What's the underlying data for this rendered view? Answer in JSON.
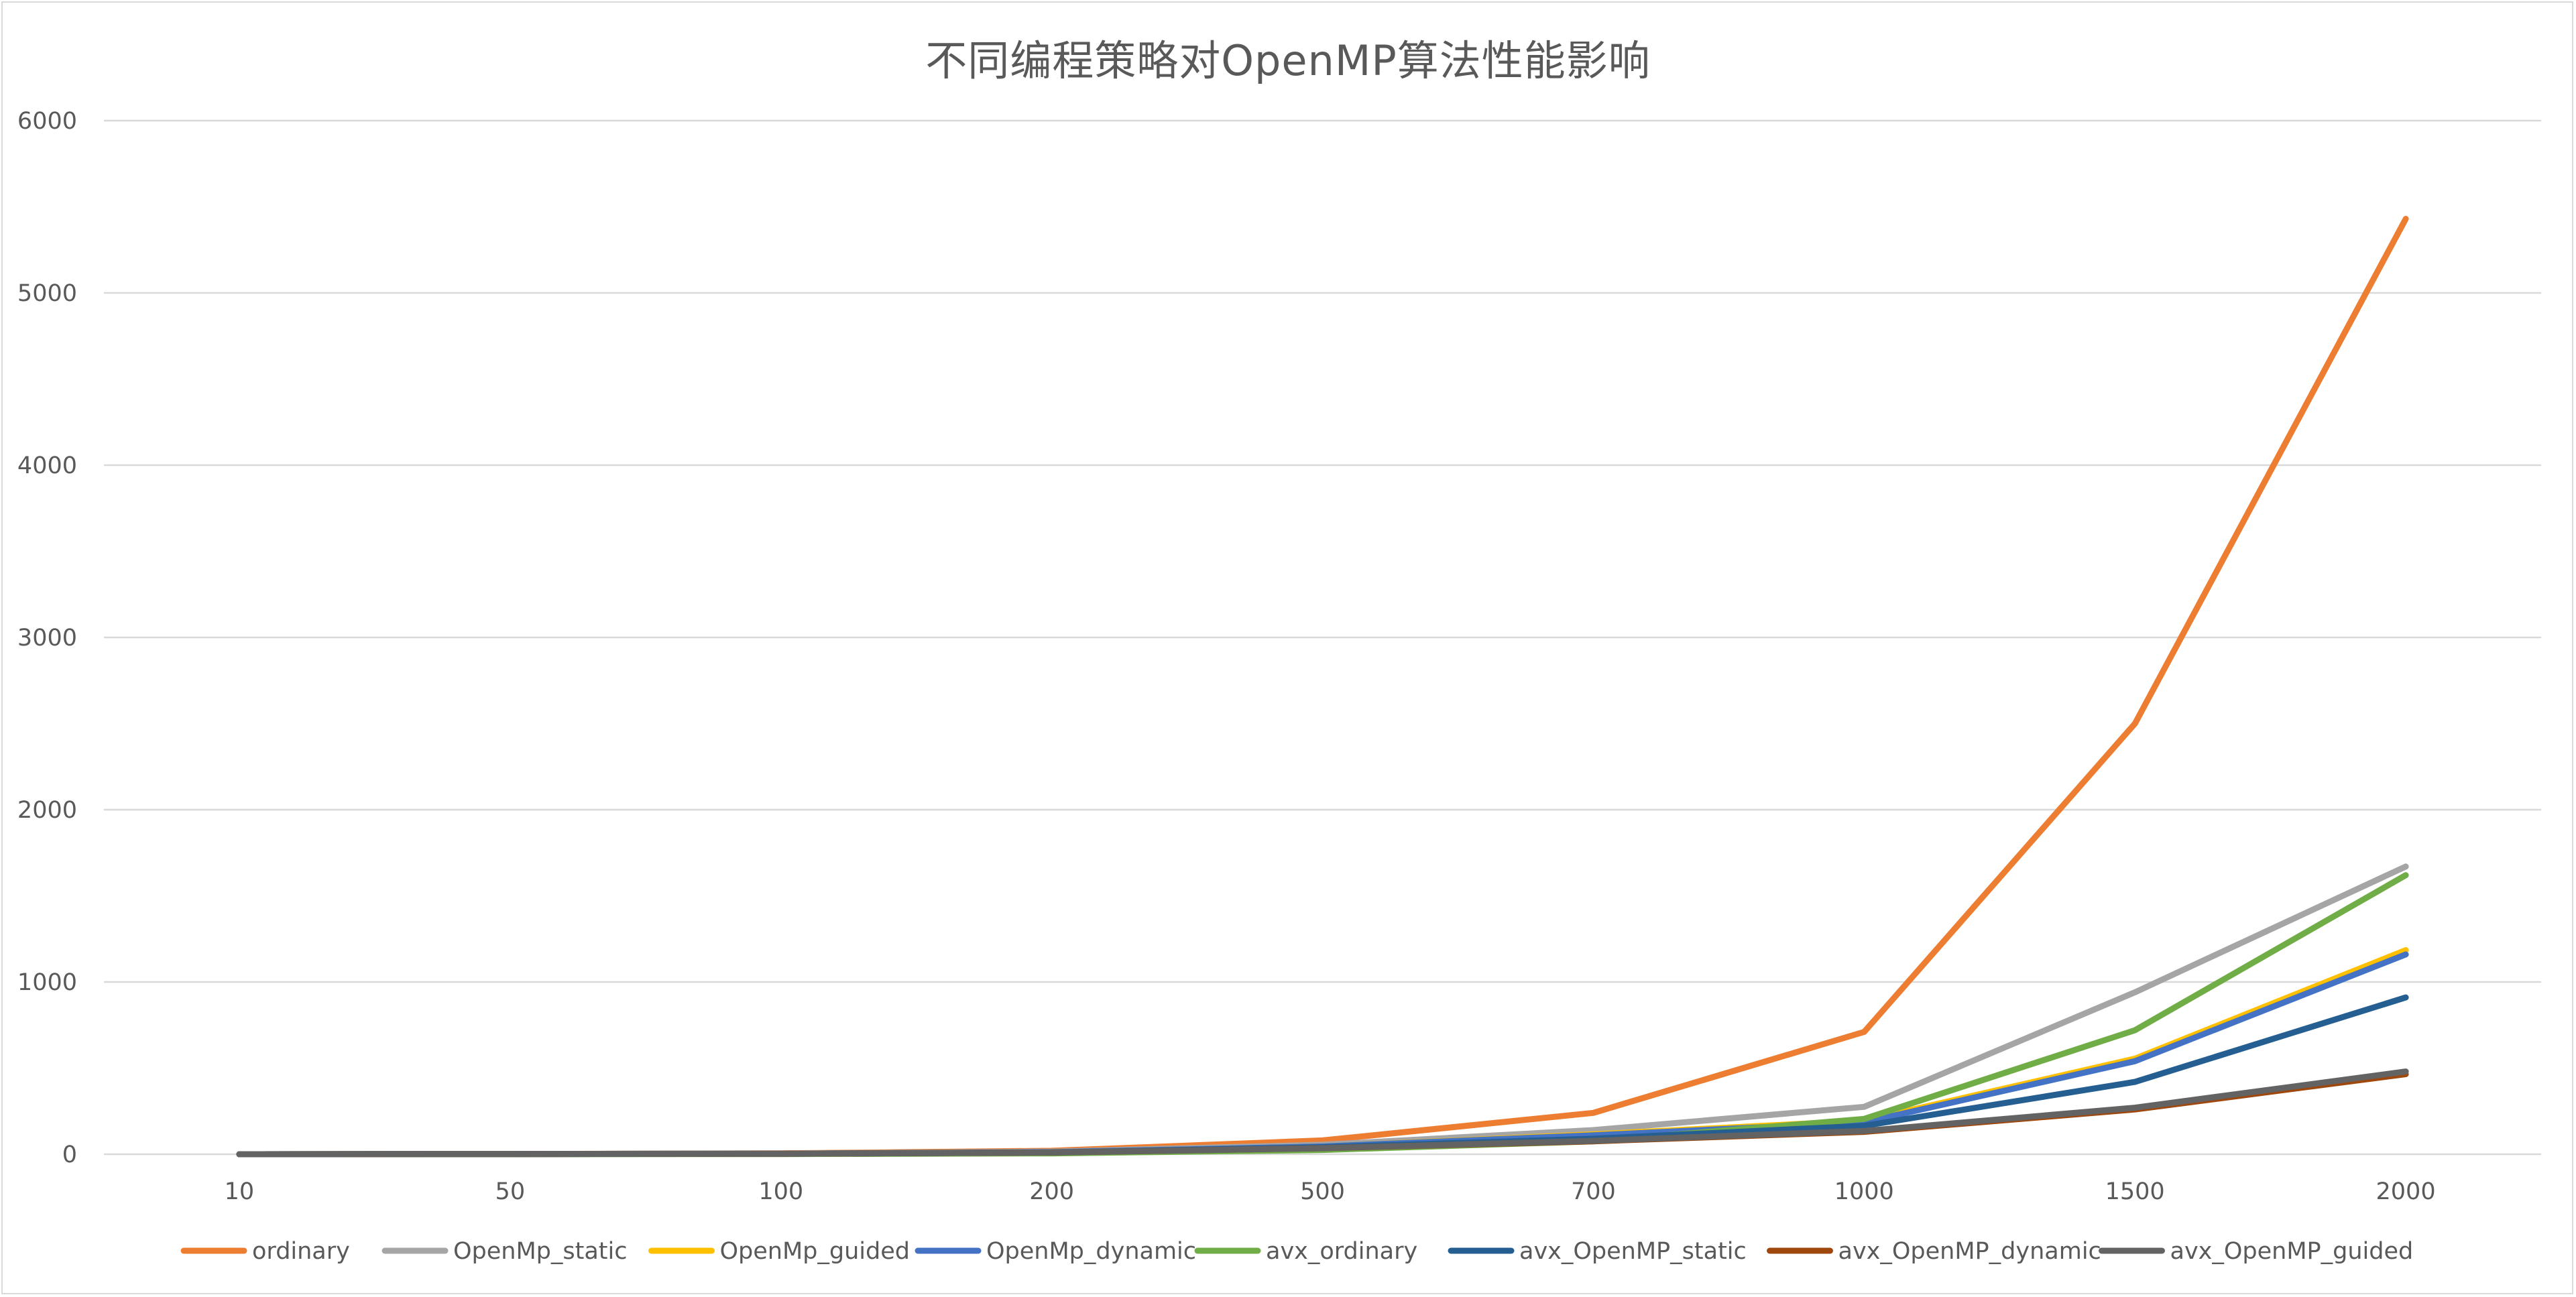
{
  "chart_data": {
    "type": "line",
    "title": "不同编程策略对OpenMP算法性能影响",
    "xlabel": "",
    "ylabel": "",
    "categories": [
      "10",
      "50",
      "100",
      "200",
      "500",
      "700",
      "1000",
      "1500",
      "2000"
    ],
    "ylim": [
      0,
      6000
    ],
    "yticks": [
      0,
      1000,
      2000,
      3000,
      4000,
      5000,
      6000
    ],
    "grid": "horizontal",
    "legend_position": "bottom",
    "series": [
      {
        "name": "ordinary",
        "color": "#ED7D31",
        "values": [
          0,
          1,
          5,
          20,
          80,
          240,
          710,
          2500,
          5430
        ]
      },
      {
        "name": "OpenMp_static",
        "color": "#A5A5A5",
        "values": [
          0,
          1,
          4,
          15,
          55,
          140,
          275,
          940,
          1670
        ]
      },
      {
        "name": "OpenMp_guided",
        "color": "#FFC000",
        "values": [
          0,
          1,
          3,
          12,
          45,
          115,
          195,
          555,
          1185
        ]
      },
      {
        "name": "OpenMp_dynamic",
        "color": "#4472C4",
        "values": [
          0,
          1,
          3,
          12,
          45,
          110,
          185,
          540,
          1160
        ]
      },
      {
        "name": "avx_ordinary",
        "color": "#70AD47",
        "values": [
          0,
          0,
          1,
          5,
          25,
          75,
          205,
          720,
          1620
        ]
      },
      {
        "name": "avx_OpenMP_static",
        "color": "#255E91",
        "values": [
          0,
          1,
          3,
          10,
          40,
          90,
          165,
          420,
          910
        ]
      },
      {
        "name": "avx_OpenMP_dynamic",
        "color": "#9E480E",
        "values": [
          0,
          1,
          3,
          10,
          35,
          75,
          130,
          260,
          465
        ]
      },
      {
        "name": "avx_OpenMP_guided",
        "color": "#636363",
        "values": [
          0,
          1,
          3,
          10,
          35,
          78,
          135,
          270,
          480
        ]
      }
    ]
  }
}
